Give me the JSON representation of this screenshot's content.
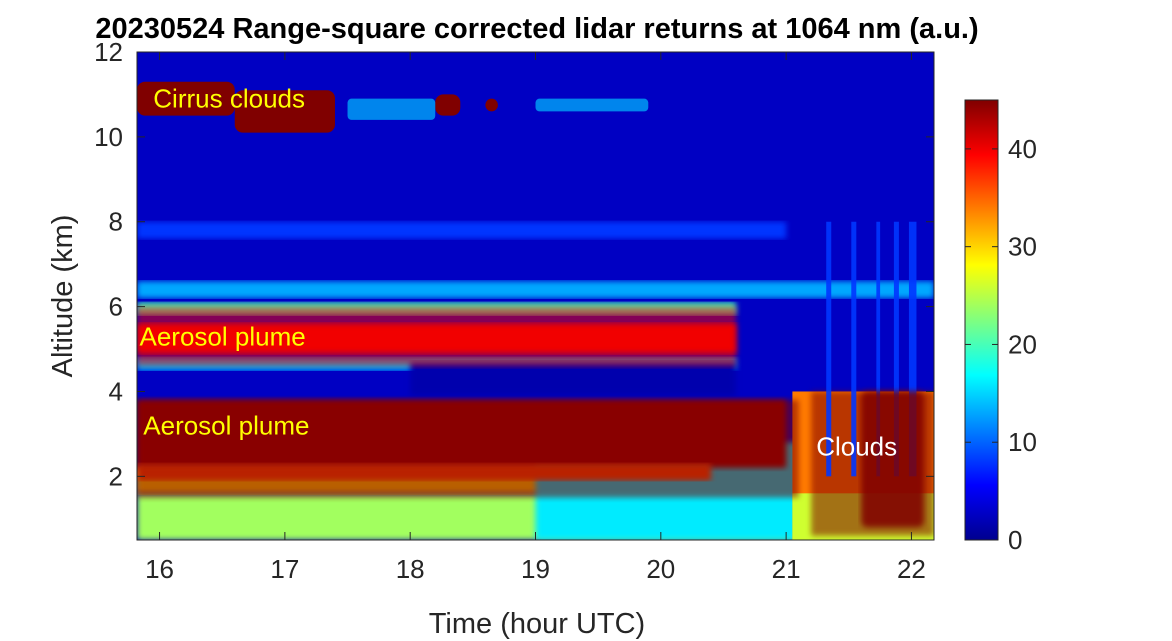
{
  "chart_data": {
    "type": "heatmap",
    "title": "20230524  Range-square corrected lidar returns at 1064 nm (a.u.)",
    "xlabel": "Time (hour UTC)",
    "ylabel": "Altitude (km)",
    "xlim": [
      15.82,
      22.18
    ],
    "ylim": [
      0.5,
      12
    ],
    "x_ticks": [
      16,
      17,
      18,
      19,
      20,
      21,
      22
    ],
    "y_ticks": [
      2,
      4,
      6,
      8,
      10,
      12
    ],
    "colorbar": {
      "range": [
        0,
        45
      ],
      "ticks": [
        0,
        10,
        20,
        30,
        40
      ],
      "colormap": "jet"
    },
    "features": [
      {
        "label": "Cirrus clouds",
        "x_range": [
          15.82,
          19.9
        ],
        "y_range": [
          10.1,
          11.3
        ],
        "value": 45
      },
      {
        "label": "Aerosol plume",
        "x_range": [
          15.82,
          20.6
        ],
        "y_range": [
          4.6,
          6.0
        ],
        "value": 40
      },
      {
        "label": "Aerosol plume",
        "x_range": [
          15.82,
          21.1
        ],
        "y_range": [
          1.5,
          3.8
        ],
        "value": 45
      },
      {
        "label": "Clouds",
        "x_range": [
          21.2,
          22.18
        ],
        "y_range": [
          0.6,
          4.0
        ],
        "value": 45
      }
    ],
    "annotations": [
      {
        "text": "Cirrus clouds",
        "x": 15.95,
        "y": 10.9,
        "color": "#ffff00"
      },
      {
        "text": "Aerosol plume",
        "x": 15.84,
        "y": 5.3,
        "color": "#ffff00"
      },
      {
        "text": "Aerosol plume",
        "x": 15.87,
        "y": 3.2,
        "color": "#ffff00"
      },
      {
        "text": "Clouds",
        "x": 21.24,
        "y": 2.7,
        "color": "#ffffff"
      }
    ]
  }
}
